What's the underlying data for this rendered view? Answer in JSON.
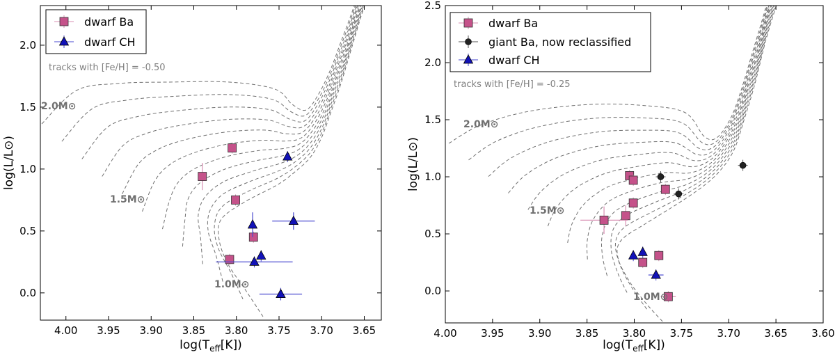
{
  "chart_data": [
    {
      "type": "scatter",
      "xlabel": "log(T_eff[K])",
      "ylabel": "log(L/L⊙)",
      "xlim": [
        4.03,
        3.63
      ],
      "ylim": [
        -0.22,
        2.32
      ],
      "xticks": [
        4.0,
        3.95,
        3.9,
        3.85,
        3.8,
        3.75,
        3.7,
        3.65
      ],
      "xtick_labels": [
        "4.00",
        "3.95",
        "3.90",
        "3.85",
        "3.80",
        "3.75",
        "3.70",
        "3.65"
      ],
      "yticks": [
        0.0,
        0.5,
        1.0,
        1.5,
        2.0
      ],
      "ytick_labels": [
        "0.0",
        "0.5",
        "1.0",
        "1.5",
        "2.0"
      ],
      "annotation": "tracks with [Fe/H] = -0.50",
      "mass_labels": [
        {
          "text": "2.0M⊙",
          "x": 3.973,
          "y": 1.52
        },
        {
          "text": "1.5M⊙",
          "x": 3.899,
          "y": 0.76
        },
        {
          "text": "1.0M⊙",
          "x": 3.79,
          "y": 0.07
        }
      ],
      "legend": {
        "position": "top-left",
        "entries": [
          "dwarf Ba",
          "dwarf CH"
        ]
      },
      "series": [
        {
          "name": "dwarf Ba",
          "marker": "square",
          "color": "#c5528a",
          "points": [
            {
              "x": 3.805,
              "y": 1.17
            },
            {
              "x": 3.84,
              "y": 0.94,
              "yerr": 0.11
            },
            {
              "x": 3.801,
              "y": 0.75
            },
            {
              "x": 3.78,
              "y": 0.45
            },
            {
              "x": 3.808,
              "y": 0.27
            }
          ]
        },
        {
          "name": "dwarf CH",
          "marker": "triangle",
          "color": "#1212b8",
          "points": [
            {
              "x": 3.74,
              "y": 1.1
            },
            {
              "x": 3.781,
              "y": 0.55,
              "yerr": 0.1,
              "xerr": 0.003
            },
            {
              "x": 3.733,
              "y": 0.58,
              "xerr": 0.025,
              "yerr": 0.07
            },
            {
              "x": 3.771,
              "y": 0.3
            },
            {
              "x": 3.779,
              "y": 0.25,
              "xerr": 0.045
            },
            {
              "x": 3.748,
              "y": -0.01,
              "xerr": 0.025,
              "yerr": 0.05
            }
          ]
        }
      ]
    },
    {
      "type": "scatter",
      "xlabel": "log(T_eff[K])",
      "ylabel": "log(L/L⊙)",
      "xlim": [
        4.0,
        3.6
      ],
      "ylim": [
        -0.28,
        2.5
      ],
      "xticks": [
        4.0,
        3.95,
        3.9,
        3.85,
        3.8,
        3.75,
        3.7,
        3.65,
        3.6
      ],
      "xtick_labels": [
        "4.00",
        "3.95",
        "3.90",
        "3.85",
        "3.80",
        "3.75",
        "3.70",
        "3.65",
        "3.60"
      ],
      "yticks": [
        0.0,
        0.5,
        1.0,
        1.5,
        2.0,
        2.5
      ],
      "ytick_labels": [
        "0.0",
        "0.5",
        "1.0",
        "1.5",
        "2.0",
        "2.5"
      ],
      "annotation": "tracks with [Fe/H] = -0.25",
      "mass_labels": [
        {
          "text": "2.0M⊙",
          "x": 3.95,
          "y": 1.39
        },
        {
          "text": "1.5M⊙",
          "x": 3.88,
          "y": 0.66
        },
        {
          "text": "1.0M⊙",
          "x": 3.77,
          "y": -0.09
        }
      ],
      "legend": {
        "position": "top-left",
        "entries": [
          "dwarf Ba",
          "giant Ba, now reclassified",
          "dwarf CH"
        ]
      },
      "series": [
        {
          "name": "dwarf Ba",
          "marker": "square",
          "color": "#c5528a",
          "points": [
            {
              "x": 3.805,
              "y": 1.01
            },
            {
              "x": 3.801,
              "y": 0.97
            },
            {
              "x": 3.767,
              "y": 0.89
            },
            {
              "x": 3.801,
              "y": 0.77
            },
            {
              "x": 3.809,
              "y": 0.66,
              "yerr": 0.09
            },
            {
              "x": 3.832,
              "y": 0.62,
              "xerr": 0.025,
              "yerr": 0.12
            },
            {
              "x": 3.774,
              "y": 0.31
            },
            {
              "x": 3.791,
              "y": 0.25
            },
            {
              "x": 3.764,
              "y": -0.05,
              "xerr": 0.008
            }
          ]
        },
        {
          "name": "giant Ba, now reclassified",
          "marker": "circle",
          "color": "#222222",
          "points": [
            {
              "x": 3.772,
              "y": 1.0
            },
            {
              "x": 3.753,
              "y": 0.85
            },
            {
              "x": 3.685,
              "y": 1.1
            }
          ]
        },
        {
          "name": "dwarf CH",
          "marker": "triangle",
          "color": "#1212b8",
          "points": [
            {
              "x": 3.791,
              "y": 0.34
            },
            {
              "x": 3.801,
              "y": 0.31
            },
            {
              "x": 3.777,
              "y": 0.14,
              "xerr": 0.008
            }
          ]
        }
      ]
    }
  ]
}
